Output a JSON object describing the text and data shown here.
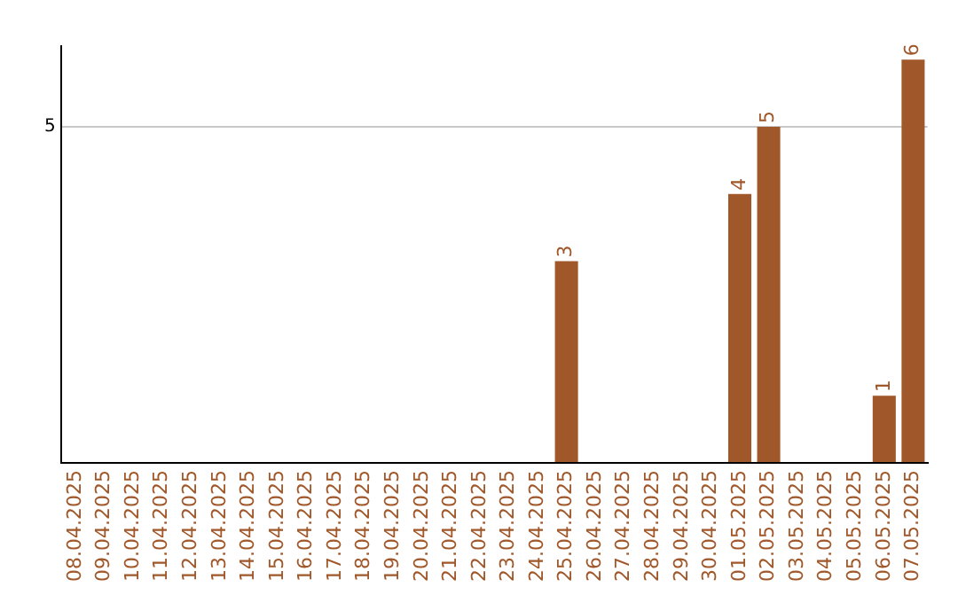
{
  "chart_data": {
    "type": "bar",
    "categories": [
      "08.04.2025",
      "09.04.2025",
      "10.04.2025",
      "11.04.2025",
      "12.04.2025",
      "13.04.2025",
      "14.04.2025",
      "15.04.2025",
      "16.04.2025",
      "17.04.2025",
      "18.04.2025",
      "19.04.2025",
      "20.04.2025",
      "21.04.2025",
      "22.04.2025",
      "23.04.2025",
      "24.04.2025",
      "25.04.2025",
      "26.04.2025",
      "27.04.2025",
      "28.04.2025",
      "29.04.2025",
      "30.04.2025",
      "01.05.2025",
      "02.05.2025",
      "03.05.2025",
      "04.05.2025",
      "05.05.2025",
      "06.05.2025",
      "07.05.2025"
    ],
    "values": [
      null,
      null,
      null,
      null,
      null,
      null,
      null,
      null,
      null,
      null,
      null,
      null,
      null,
      null,
      null,
      null,
      null,
      3,
      null,
      null,
      null,
      null,
      null,
      4,
      5,
      null,
      null,
      null,
      1,
      6
    ],
    "value_labels": [
      null,
      null,
      null,
      null,
      null,
      null,
      null,
      null,
      null,
      null,
      null,
      null,
      null,
      null,
      null,
      null,
      null,
      "3",
      null,
      null,
      null,
      null,
      null,
      "4",
      "5",
      null,
      null,
      null,
      "1",
      "6"
    ],
    "color": "#a0582a",
    "ylim": [
      0,
      6.2
    ],
    "yticks": [
      {
        "value": 0,
        "label": null
      },
      5
    ],
    "grid": "y"
  }
}
